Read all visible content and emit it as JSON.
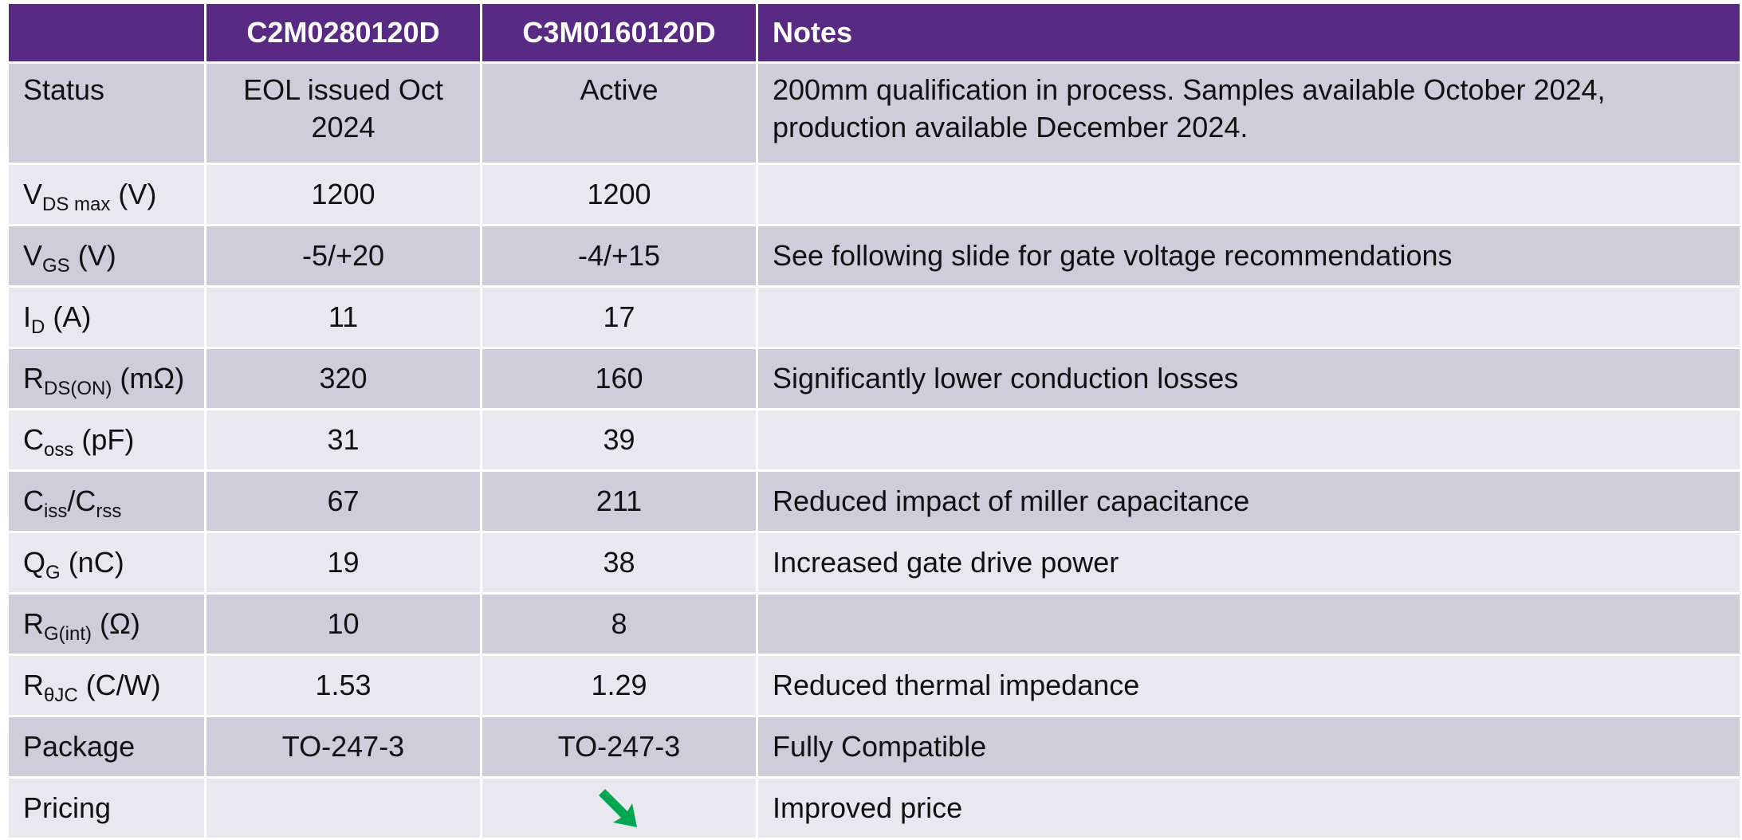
{
  "table": {
    "header": [
      "C2M0280120D",
      "C3M0160120D",
      "Notes"
    ],
    "rows": [
      {
        "param": [
          "Status"
        ],
        "c2m": "EOL issued Oct 2024",
        "c3m": "Active",
        "notes": "200mm qualification in process.  Samples available October 2024, production available December 2024."
      },
      {
        "param": [
          "V",
          {
            "sub": "DS max"
          },
          " (V)"
        ],
        "c2m": "1200",
        "c3m": "1200"
      },
      {
        "param": [
          "V",
          {
            "sub": "GS"
          },
          " (V)"
        ],
        "c2m": "-5/+20",
        "c3m": "-4/+15",
        "notes": "See following slide for gate voltage recommendations"
      },
      {
        "param": [
          "I",
          {
            "sub": "D"
          },
          " (A)"
        ],
        "c2m": "11",
        "c3m": "17"
      },
      {
        "param": [
          "R",
          {
            "sub": "DS(ON)"
          },
          " (mΩ)"
        ],
        "c2m": "320",
        "c3m": "160",
        "notes": "Significantly lower conduction losses"
      },
      {
        "param": [
          "C",
          {
            "sub": "oss"
          },
          " (pF)"
        ],
        "c2m": "31",
        "c3m": "39"
      },
      {
        "param": [
          "C",
          {
            "sub": "iss"
          },
          "/C",
          {
            "sub": "rss"
          }
        ],
        "c2m": "67",
        "c3m": "211",
        "notes": "Reduced impact of miller capacitance"
      },
      {
        "param": [
          "Q",
          {
            "sub": "G"
          },
          " (nC)"
        ],
        "c2m": "19",
        "c3m": "38",
        "notes": "Increased gate drive power"
      },
      {
        "param": [
          "R",
          {
            "sub": "G(int)"
          },
          " (Ω)"
        ],
        "c2m": "10",
        "c3m": "8"
      },
      {
        "param": [
          "R",
          {
            "sub": "θJC"
          },
          " (C/W)"
        ],
        "c2m": "1.53",
        "c3m": "1.29",
        "notes": "Reduced thermal impedance"
      },
      {
        "param": [
          "Package"
        ],
        "c2m": "TO-247-3",
        "c3m": "TO-247-3",
        "notes": "Fully Compatible"
      },
      {
        "param": [
          "Pricing"
        ],
        "notes": "Improved price"
      }
    ]
  }
}
